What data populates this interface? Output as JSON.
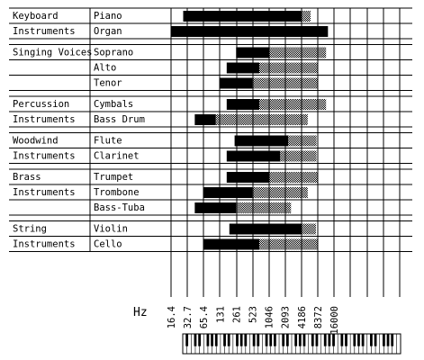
{
  "freq_axis": {
    "unit": "Hz",
    "ticks": [
      "16.4",
      "32.7",
      "65.4",
      "131",
      "261",
      "523",
      "1046",
      "2093",
      "4186",
      "8372",
      "16000"
    ]
  },
  "groups": [
    {
      "label_lines": [
        "Keyboard",
        "Instruments"
      ],
      "instruments": [
        {
          "name": "Piano",
          "fundamental": [
            27.5,
            4186
          ],
          "harmonics_to": 6200
        },
        {
          "name": "Organ",
          "fundamental": [
            16.4,
            13000
          ],
          "harmonics_to": null
        }
      ]
    },
    {
      "label_lines": [
        "Singing Voices"
      ],
      "instruments": [
        {
          "name": "Soprano",
          "fundamental": [
            261,
            1046
          ],
          "harmonics_to": 12000
        },
        {
          "name": "Alto",
          "fundamental": [
            175,
            700
          ],
          "harmonics_to": 8372
        },
        {
          "name": "Tenor",
          "fundamental": [
            131,
            523
          ],
          "harmonics_to": 8372
        }
      ]
    },
    {
      "label_lines": [
        "Percussion",
        "Instruments"
      ],
      "instruments": [
        {
          "name": "Cymbals",
          "fundamental": [
            175,
            700
          ],
          "harmonics_to": 12000
        },
        {
          "name": "Bass Drum",
          "fundamental": [
            45,
            110
          ],
          "harmonics_to": 5500
        }
      ]
    },
    {
      "label_lines": [
        "Woodwind",
        "Instruments"
      ],
      "instruments": [
        {
          "name": "Flute",
          "fundamental": [
            245,
            2400
          ],
          "harmonics_to": 8000
        },
        {
          "name": "Clarinet",
          "fundamental": [
            175,
            1700
          ],
          "harmonics_to": 8000
        }
      ]
    },
    {
      "label_lines": [
        "Brass",
        "Instruments"
      ],
      "instruments": [
        {
          "name": "Trumpet",
          "fundamental": [
            175,
            1046
          ],
          "harmonics_to": 8372
        },
        {
          "name": "Trombone",
          "fundamental": [
            65.4,
            523
          ],
          "harmonics_to": 5500
        },
        {
          "name": "Bass-Tuba",
          "fundamental": [
            45,
            261
          ],
          "harmonics_to": 2700
        }
      ]
    },
    {
      "label_lines": [
        "String",
        "Instruments"
      ],
      "instruments": [
        {
          "name": "Violin",
          "fundamental": [
            196,
            4186
          ],
          "harmonics_to": 7800
        },
        {
          "name": "Cello",
          "fundamental": [
            65.4,
            700
          ],
          "harmonics_to": 8372
        }
      ]
    }
  ],
  "colors": {
    "fundamental": "#000000",
    "harmonics": "#bdbdbd",
    "grid": "#000000",
    "background": "#ffffff"
  }
}
